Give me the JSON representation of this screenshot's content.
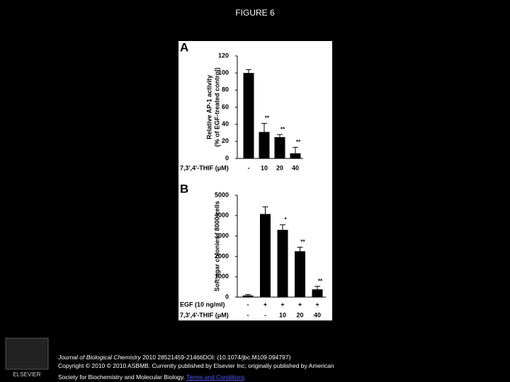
{
  "header": {
    "title": "FIGURE 6"
  },
  "chart_data": [
    {
      "type": "bar",
      "panel_label": "A",
      "y_label": [
        "Relative AP-1 activity",
        "(% of EGF-treated control)"
      ],
      "x_label": "7,3',4'-THIF (μM)",
      "categories": [
        "-",
        "10",
        "20",
        "40"
      ],
      "values": [
        100,
        31,
        25,
        6
      ],
      "errors": [
        4,
        10,
        3,
        7
      ],
      "significance": [
        null,
        "**",
        "**",
        "**"
      ],
      "color": "#000000",
      "ylim": [
        0,
        120
      ],
      "yticks": [
        0,
        20,
        40,
        60,
        80,
        100,
        120
      ]
    },
    {
      "type": "bar",
      "panel_label": "B",
      "y_label": [
        "Soft agar colonies / 8000 cells"
      ],
      "category_rows": [
        {
          "label": "EGF (10 ng/ml)",
          "categories": [
            "-",
            "+",
            "+",
            "+",
            "+"
          ]
        },
        {
          "label": "7,3',4'-THIF (μM)",
          "categories": [
            "-",
            "-",
            "10",
            "20",
            "40"
          ]
        }
      ],
      "values": [
        80,
        4080,
        3300,
        2250,
        380
      ],
      "errors": [
        40,
        350,
        250,
        200,
        150
      ],
      "significance": [
        null,
        null,
        "*",
        "**",
        "**"
      ],
      "color": "#000000",
      "ylim": [
        0,
        5000
      ],
      "yticks": [
        0,
        1000,
        2000,
        3000,
        4000,
        5000
      ]
    }
  ],
  "footer": {
    "journal": "Journal of Biological Chemistry",
    "citation": " 2010 28521459-21466DOI: (10.1074/jbc.M109.094797)",
    "copyright": "Copyright © 2010 © 2010 ASBMB. Currently published by Elsevier Inc; originally published by American",
    "society": "Society for Biochemistry and Molecular Biology.",
    "link": "Terms and Conditions",
    "logo": "ELSEVIER"
  }
}
